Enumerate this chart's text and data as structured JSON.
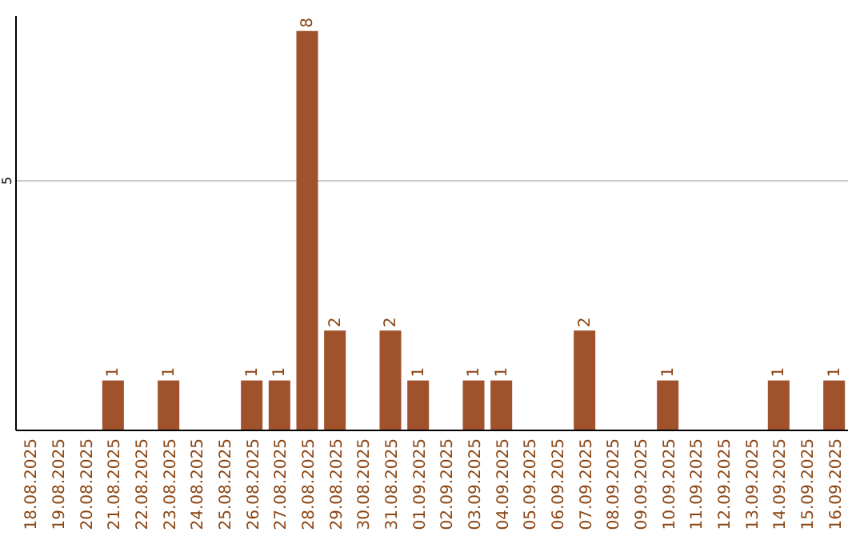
{
  "chart_data": {
    "type": "bar",
    "categories": [
      "18.08.2025",
      "19.08.2025",
      "20.08.2025",
      "21.08.2025",
      "22.08.2025",
      "23.08.2025",
      "24.08.2025",
      "25.08.2025",
      "26.08.2025",
      "27.08.2025",
      "28.08.2025",
      "29.08.2025",
      "30.08.2025",
      "31.08.2025",
      "01.09.2025",
      "02.09.2025",
      "03.09.2025",
      "04.09.2025",
      "05.09.2025",
      "06.09.2025",
      "07.09.2025",
      "08.09.2025",
      "09.09.2025",
      "10.09.2025",
      "11.09.2025",
      "12.09.2025",
      "13.09.2025",
      "14.09.2025",
      "15.09.2025",
      "16.09.2025"
    ],
    "values": [
      0,
      0,
      0,
      1,
      0,
      1,
      0,
      0,
      1,
      1,
      8,
      2,
      0,
      2,
      1,
      0,
      1,
      1,
      0,
      0,
      2,
      0,
      0,
      1,
      0,
      0,
      0,
      1,
      0,
      1
    ],
    "value_labels": [
      null,
      null,
      null,
      "1",
      null,
      "1",
      null,
      null,
      "1",
      "1",
      "8",
      "2",
      null,
      "2",
      "1",
      null,
      "1",
      "1",
      null,
      null,
      "2",
      null,
      null,
      "1",
      null,
      null,
      null,
      "1",
      null,
      "1"
    ],
    "color": "#a0522d",
    "ylim": [
      0,
      8.3
    ],
    "yticks": [
      5
    ],
    "grid": "y"
  }
}
